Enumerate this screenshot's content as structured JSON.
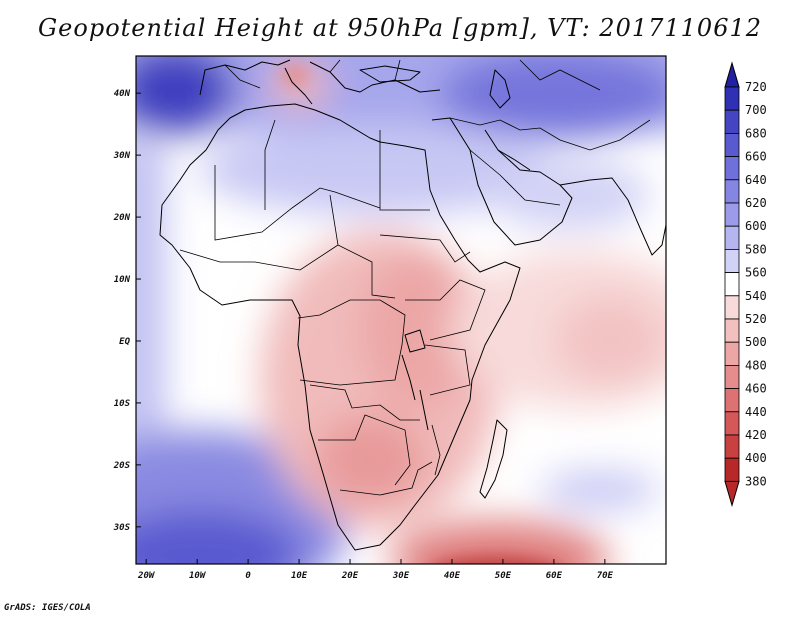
{
  "title": "Geopotential Height at 950hPa [gpm], VT: 2017110612",
  "credit": "GrADS: IGES/COLA",
  "map": {
    "lon_range": [
      -22,
      82
    ],
    "lat_range": [
      -36,
      46
    ],
    "lon_labels": [
      {
        "lon": -20,
        "text": "20W"
      },
      {
        "lon": -10,
        "text": "10W"
      },
      {
        "lon": 0,
        "text": "0"
      },
      {
        "lon": 10,
        "text": "10E"
      },
      {
        "lon": 20,
        "text": "20E"
      },
      {
        "lon": 30,
        "text": "30E"
      },
      {
        "lon": 40,
        "text": "40E"
      },
      {
        "lon": 50,
        "text": "50E"
      },
      {
        "lon": 60,
        "text": "60E"
      },
      {
        "lon": 70,
        "text": "70E"
      }
    ],
    "lat_labels": [
      {
        "lat": 40,
        "text": "40N"
      },
      {
        "lat": 30,
        "text": "30N"
      },
      {
        "lat": 20,
        "text": "20N"
      },
      {
        "lat": 10,
        "text": "10N"
      },
      {
        "lat": 0,
        "text": "EQ"
      },
      {
        "lat": -10,
        "text": "10S"
      },
      {
        "lat": -20,
        "text": "20S"
      },
      {
        "lat": -30,
        "text": "30S"
      }
    ]
  },
  "colorbar": {
    "levels": [
      "720",
      "700",
      "680",
      "660",
      "640",
      "620",
      "600",
      "580",
      "560",
      "540",
      "520",
      "500",
      "480",
      "460",
      "440",
      "420",
      "400",
      "380"
    ],
    "colors": [
      "#2020a0",
      "#3030b4",
      "#4545c4",
      "#5a5ad0",
      "#7070da",
      "#8585e2",
      "#9b9be9",
      "#b5b5f0",
      "#d2d2f6",
      "#ffffff",
      "#f8dada",
      "#f3c0c0",
      "#eca6a6",
      "#e58c8c",
      "#dd7272",
      "#d45858",
      "#c84040",
      "#b82828"
    ]
  },
  "chart_data": {
    "type": "heatmap",
    "title": "Geopotential Height at 950hPa [gpm], VT: 2017110612",
    "variable": "Geopotential height at 950 hPa",
    "units": "gpm",
    "valid_time": "2017110612",
    "x_axis": "longitude (20W to 70E)",
    "y_axis": "latitude (30S to 40N)",
    "contour_levels": [
      380,
      400,
      420,
      440,
      460,
      480,
      500,
      520,
      540,
      560,
      580,
      600,
      620,
      640,
      660,
      680,
      700,
      720
    ],
    "regions": [
      {
        "name": "central and southern Africa",
        "approx_gpm": 500
      },
      {
        "name": "Arabian Sea / western Indian Ocean",
        "approx_gpm": 520
      },
      {
        "name": "equatorial Atlantic",
        "approx_gpm": 540
      },
      {
        "name": "Sahara / Middle East",
        "approx_gpm": 590
      },
      {
        "name": "Mediterranean / Turkey / Iran",
        "approx_gpm": 650
      },
      {
        "name": "South Atlantic high",
        "approx_gpm": 660
      },
      {
        "name": "southern Indian Ocean near 50E 36S",
        "approx_gpm": 420
      }
    ]
  }
}
